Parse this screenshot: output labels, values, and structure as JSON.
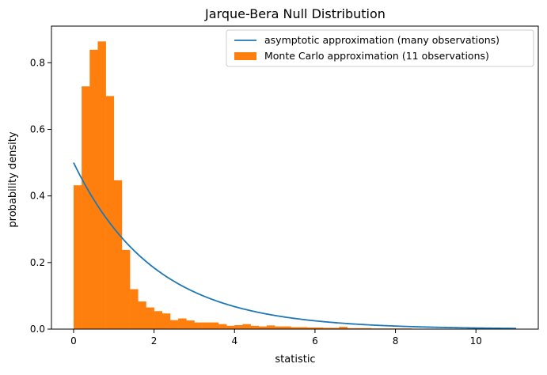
{
  "chart_data": {
    "type": "bar",
    "title": "Jarque-Bera Null Distribution",
    "xlabel": "statistic",
    "ylabel": "probability density",
    "xlim": [
      -0.55,
      11.55
    ],
    "ylim": [
      0,
      0.91
    ],
    "xticks": [
      0,
      2,
      4,
      6,
      8,
      10
    ],
    "yticks": [
      0.0,
      0.2,
      0.4,
      0.6,
      0.8
    ],
    "ytick_labels": [
      "0.0",
      "0.2",
      "0.4",
      "0.6",
      "0.8"
    ],
    "grid": false,
    "legend_position": "top-right",
    "series": [
      {
        "name": "asymptotic approximation (many observations)",
        "type": "line",
        "color": "#1f77b4",
        "function": "chi2 pdf, 2 degrees of freedom: 0.5*exp(-x/2)",
        "x_range": [
          0,
          11
        ]
      },
      {
        "name": "Monte Carlo approximation (11 observations)",
        "type": "histogram",
        "color": "#ff7f0e",
        "bin_width": 0.2,
        "bin_start": 0,
        "values": [
          0.432,
          0.729,
          0.839,
          0.864,
          0.7,
          0.447,
          0.238,
          0.12,
          0.083,
          0.065,
          0.054,
          0.047,
          0.027,
          0.032,
          0.026,
          0.02,
          0.02,
          0.02,
          0.015,
          0.01,
          0.012,
          0.015,
          0.01,
          0.008,
          0.011,
          0.008,
          0.008,
          0.006,
          0.006,
          0.005,
          0.005,
          0.004,
          0.004,
          0.007,
          0.003,
          0.003,
          0.003,
          0.002,
          0.002,
          0.002,
          0.002,
          0.002,
          0.001,
          0.001,
          0.001,
          0.001,
          0.001,
          0.001,
          0.001,
          0.002,
          0.001,
          0.001,
          0.001,
          0.001,
          0.001
        ]
      }
    ]
  }
}
